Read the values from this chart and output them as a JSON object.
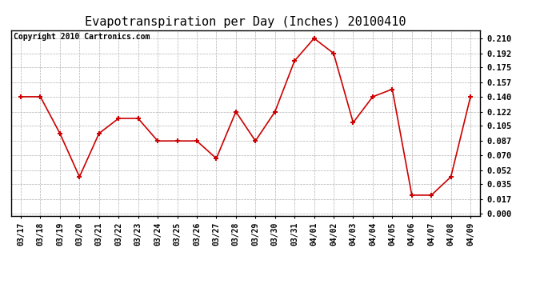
{
  "title": "Evapotranspiration per Day (Inches) 20100410",
  "copyright": "Copyright 2010 Cartronics.com",
  "x_labels": [
    "03/17",
    "03/18",
    "03/19",
    "03/20",
    "03/21",
    "03/22",
    "03/23",
    "03/24",
    "03/25",
    "03/26",
    "03/27",
    "03/28",
    "03/29",
    "03/30",
    "03/31",
    "04/01",
    "04/02",
    "04/03",
    "04/04",
    "04/05",
    "04/06",
    "04/07",
    "04/08",
    "04/09"
  ],
  "y_values": [
    0.14,
    0.14,
    0.096,
    0.044,
    0.096,
    0.114,
    0.114,
    0.087,
    0.087,
    0.087,
    0.066,
    0.122,
    0.087,
    0.122,
    0.183,
    0.21,
    0.192,
    0.109,
    0.14,
    0.149,
    0.022,
    0.022,
    0.044,
    0.14
  ],
  "line_color": "#cc0000",
  "marker_color": "#cc0000",
  "bg_color": "#ffffff",
  "grid_color": "#b0b0b0",
  "yticks": [
    0.0,
    0.017,
    0.035,
    0.052,
    0.07,
    0.087,
    0.105,
    0.122,
    0.14,
    0.157,
    0.175,
    0.192,
    0.21
  ],
  "ylim": [
    -0.003,
    0.22
  ],
  "title_fontsize": 11,
  "copyright_fontsize": 7,
  "tick_fontsize": 7,
  "ytick_fontsize": 7.5
}
